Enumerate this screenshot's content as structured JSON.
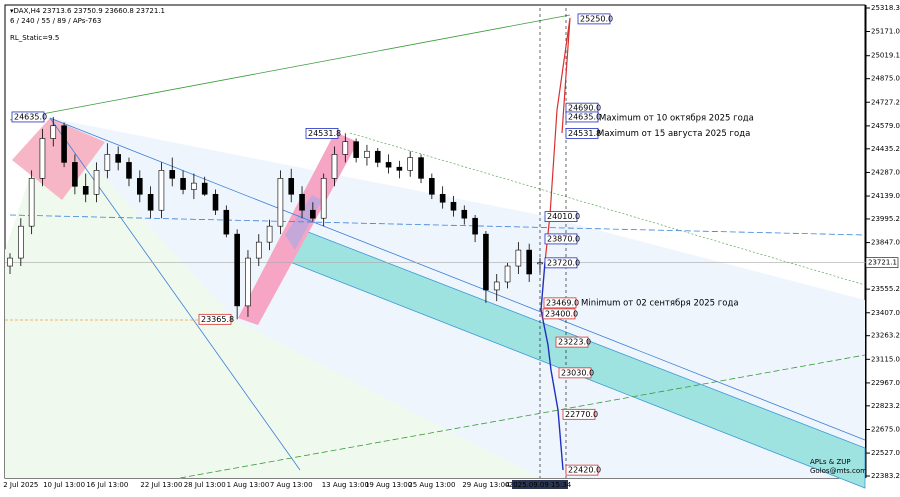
{
  "header": {
    "symbol": "▾DAX,H4  23713.6 23750.9 23660.8 23721.1",
    "params": "6 / 240 / 55 / 89 / APs-763",
    "indicator": "RL_Static=9.5"
  },
  "chart_data": {
    "type": "candlestick",
    "categories": [
      null,
      "2 Jul 2025",
      null,
      null,
      null,
      "10 Jul 13:00",
      null,
      null,
      null,
      "16 Jul 13:00",
      null,
      null,
      null,
      null,
      "22 Jul 13:00",
      null,
      null,
      null,
      "28 Jul 13:00",
      null,
      null,
      null,
      "1 Aug 13:00",
      null,
      null,
      null,
      "7 Aug 13:00",
      null,
      null,
      null,
      null,
      "13 Aug 13:00",
      null,
      null,
      null,
      "19 Aug 13:00",
      null,
      null,
      null,
      "25 Aug 13:00",
      null,
      null,
      null,
      null,
      "29 Aug 13:00",
      null,
      "4",
      null,
      null,
      "2025.09.09 15:34"
    ],
    "open": [
      23700,
      23750,
      23950,
      24250,
      24500,
      24580,
      24350,
      24200,
      24150,
      24300,
      24400,
      24350,
      24250,
      24150,
      24050,
      24300,
      24250,
      24180,
      24220,
      24150,
      24050,
      23900,
      23450,
      23750,
      23850,
      23950,
      24250,
      24150,
      24050,
      24000,
      24250,
      24400,
      24480,
      24380,
      24420,
      24350,
      24320,
      24300,
      24380,
      24250,
      24150,
      24100,
      24050,
      24000,
      23900,
      23550,
      23600,
      23700,
      23800,
      23713.6
    ],
    "high": [
      23780,
      24000,
      24300,
      24560,
      24635,
      24600,
      24400,
      24280,
      24350,
      24470,
      24450,
      24380,
      24300,
      24200,
      24350,
      24380,
      24300,
      24280,
      24260,
      24180,
      24080,
      23930,
      23800,
      23900,
      23990,
      24300,
      24310,
      24200,
      24100,
      24280,
      24450,
      24531.8,
      24500,
      24460,
      24440,
      24400,
      24360,
      24420,
      24400,
      24280,
      24200,
      24140,
      24080,
      24020,
      23920,
      23650,
      23720,
      23850,
      23840,
      23750.9
    ],
    "low": [
      23650,
      23700,
      23900,
      24200,
      24450,
      24320,
      24150,
      24100,
      24100,
      24250,
      24300,
      24200,
      24100,
      24000,
      24000,
      24200,
      24150,
      24120,
      24140,
      24020,
      23880,
      23365.8,
      23380,
      23700,
      23800,
      23900,
      24100,
      24000,
      23980,
      23950,
      24200,
      24350,
      24350,
      24330,
      24320,
      24280,
      24250,
      24260,
      24220,
      24120,
      24060,
      24010,
      23960,
      23850,
      23469,
      23480,
      23560,
      23650,
      23600,
      23660.8
    ],
    "close": [
      23750,
      23950,
      24250,
      24500,
      24580,
      24350,
      24200,
      24150,
      24300,
      24400,
      24350,
      24250,
      24150,
      24050,
      24300,
      24250,
      24180,
      24220,
      24150,
      24050,
      23900,
      23450,
      23750,
      23850,
      23950,
      24250,
      24150,
      24050,
      24000,
      24250,
      24400,
      24480,
      24380,
      24420,
      24350,
      24320,
      24300,
      24380,
      24250,
      24150,
      24100,
      24050,
      24000,
      23900,
      23550,
      23600,
      23700,
      23800,
      23650,
      23721.1
    ],
    "ylim": [
      22383.2,
      25318.3
    ],
    "yticks": [
      25318.3,
      {
        "value": 25171,
        "label": "25171.0"
      },
      25019.1,
      {
        "value": 24875,
        "label": "24875.0"
      },
      24727.2,
      {
        "value": 24579,
        "label": "24579.0"
      },
      24435.2,
      {
        "value": 24287,
        "label": "24287.0"
      },
      {
        "value": 24139,
        "label": "24139.0"
      },
      23995.2,
      {
        "value": 23847,
        "label": "23847.0"
      },
      23555.2,
      {
        "value": 23407,
        "label": "23407.0"
      },
      23263.2,
      {
        "value": 23115,
        "label": "23115.0"
      },
      {
        "value": 22967,
        "label": "22967.0"
      },
      22823.2,
      {
        "value": 22675,
        "label": "22675.0"
      },
      {
        "value": 22527,
        "label": "22527.0"
      },
      22383.2
    ],
    "current_price": 23721.1,
    "levels": [
      {
        "value": 25250,
        "label": "25250.0"
      },
      {
        "value": 24690,
        "label": "24690.0"
      },
      {
        "value": 24635,
        "label": "24635.0"
      },
      {
        "value": 24531.8,
        "label": "24531.8"
      },
      {
        "value": 24010,
        "label": "24010.0"
      },
      {
        "value": 23870,
        "label": "23870.0"
      },
      {
        "value": 23720,
        "label": "23720.0"
      },
      {
        "value": 23469,
        "label": "23469.0"
      },
      {
        "value": 23400,
        "label": "23400.0"
      },
      {
        "value": 23223,
        "label": "23223.0"
      },
      {
        "value": 23030,
        "label": "23030.0"
      },
      {
        "value": 22770,
        "label": "22770.0"
      },
      {
        "value": 22420,
        "label": "22420.0"
      },
      {
        "value": 24635,
        "label": "24635.0"
      },
      {
        "value": 24531.8,
        "label": "24531.8"
      },
      {
        "value": 23365.8,
        "label": "23365.8"
      }
    ],
    "annotations": [
      "Maximum от 10 октября 2025 года",
      "Maximum от 15 августа 2025 года",
      "Minimum от 02 сентября 2025 года"
    ],
    "watermark": [
      "APLs & ZUP",
      "Golos@mts.com"
    ]
  }
}
